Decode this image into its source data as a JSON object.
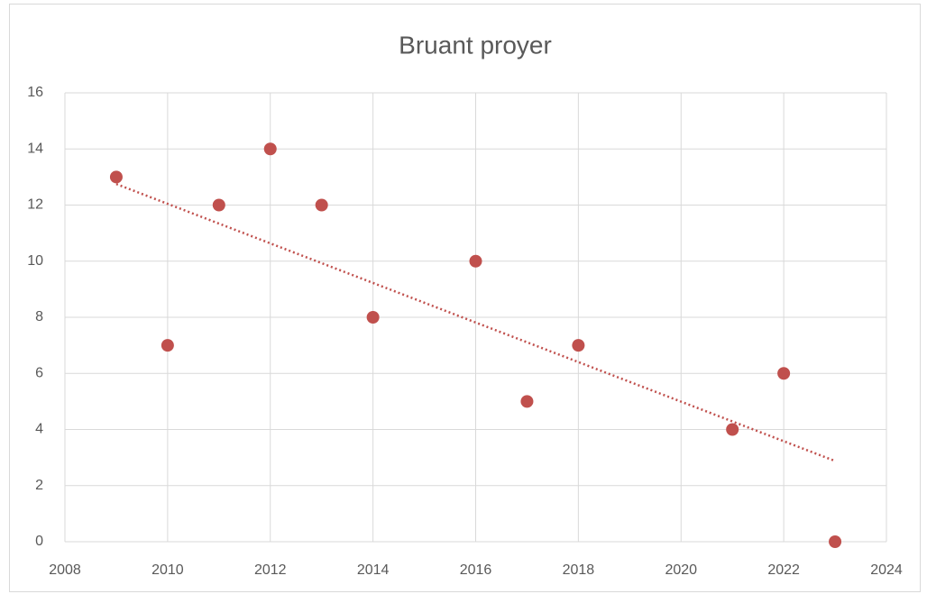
{
  "chart_data": {
    "type": "scatter",
    "title": "Bruant proyer",
    "series": [
      {
        "color": "#c0504d",
        "x": [
          2009,
          2010,
          2011,
          2012,
          2013,
          2014,
          2016,
          2017,
          2018,
          2021,
          2022,
          2023
        ],
        "values": [
          13,
          7,
          12,
          14,
          12,
          8,
          10,
          5,
          7,
          4,
          6,
          0
        ]
      }
    ],
    "trendline": "linear",
    "xlim": [
      2008,
      2024
    ],
    "xticks": [
      2008,
      2010,
      2012,
      2014,
      2016,
      2018,
      2020,
      2022,
      2024
    ],
    "ylim": [
      0,
      16
    ],
    "yticks": [
      0,
      2,
      4,
      6,
      8,
      10,
      12,
      14,
      16
    ],
    "grid": true
  }
}
